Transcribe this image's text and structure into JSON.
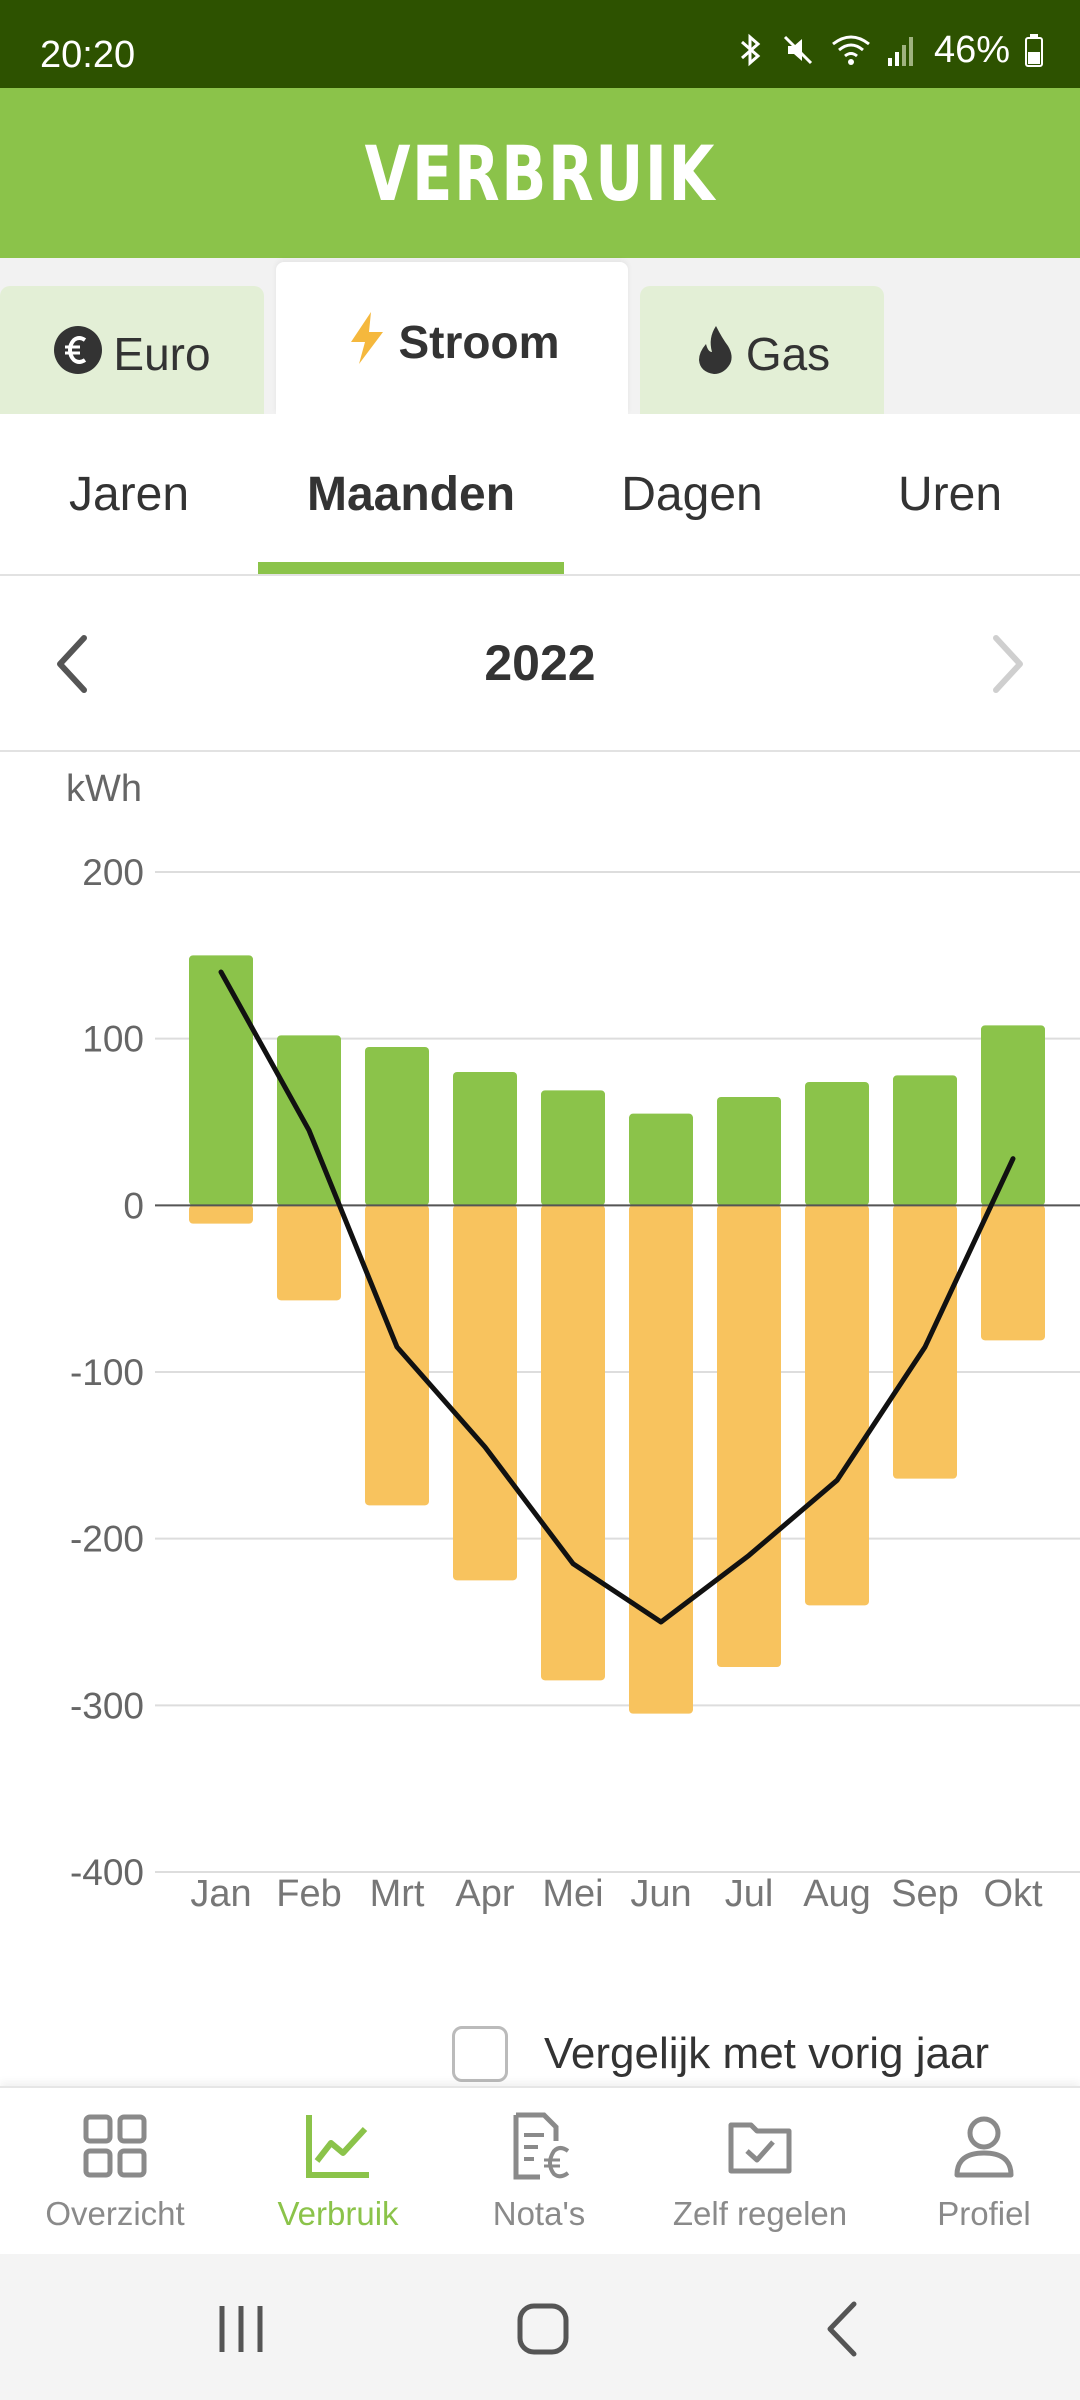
{
  "status": {
    "time": "20:20",
    "battery": "46%"
  },
  "header": {
    "title": "VERBRUIK"
  },
  "main_tabs": [
    {
      "label": "Euro",
      "icon": "euro-icon"
    },
    {
      "label": "Stroom",
      "icon": "lightning-icon",
      "active": true
    },
    {
      "label": "Gas",
      "icon": "flame-icon"
    }
  ],
  "sub_tabs": [
    {
      "label": "Jaren"
    },
    {
      "label": "Maanden",
      "active": true
    },
    {
      "label": "Dagen"
    },
    {
      "label": "Uren"
    }
  ],
  "period": {
    "year": "2022"
  },
  "chart_data": {
    "type": "bar",
    "unit_label": "kWh",
    "categories": [
      "Jan",
      "Feb",
      "Mrt",
      "Apr",
      "Mei",
      "Jun",
      "Jul",
      "Aug",
      "Sep",
      "Okt"
    ],
    "series": [
      {
        "values": [
          150,
          102,
          95,
          80,
          69,
          55,
          65,
          74,
          78,
          108
        ],
        "color": "#8bc34a"
      },
      {
        "values": [
          -11,
          -57,
          -180,
          -225,
          -285,
          -305,
          -277,
          -240,
          -164,
          -81
        ],
        "color": "#f8c35e"
      },
      {
        "type": "line",
        "values": [
          140,
          45,
          -85,
          -145,
          -215,
          -250,
          -210,
          -165,
          -85,
          28
        ],
        "color": "#111111"
      }
    ],
    "yticks": [
      200,
      100,
      0,
      -100,
      -200,
      -300,
      -400
    ],
    "ylim": [
      -400,
      200
    ],
    "grid": true,
    "legend": "none"
  },
  "compare": {
    "label": "Vergelijk met vorig jaar",
    "checked": false
  },
  "bottom_nav": [
    {
      "label": "Overzicht",
      "icon": "grid-icon"
    },
    {
      "label": "Verbruik",
      "icon": "chart-icon",
      "active": true
    },
    {
      "label": "Nota's",
      "icon": "invoice-icon"
    },
    {
      "label": "Zelf regelen",
      "icon": "folder-check-icon"
    },
    {
      "label": "Profiel",
      "icon": "person-icon"
    }
  ],
  "colors": {
    "brand_green": "#8bc34a",
    "status_bar": "#2d5200",
    "return_orange": "#f8c35e"
  }
}
